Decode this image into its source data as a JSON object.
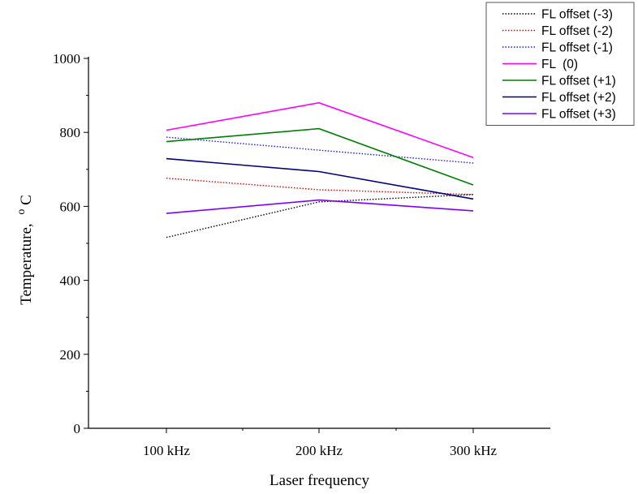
{
  "chart_data": {
    "type": "line",
    "title": "",
    "xlabel": "Laser frequency",
    "ylabel": "Temperature,",
    "ylabel_unit": {
      "superscript": "o",
      "base": "C"
    },
    "categories": [
      "100 kHz",
      "200 kHz",
      "300 kHz"
    ],
    "ylim": [
      0,
      1000
    ],
    "yticks": [
      0,
      200,
      400,
      600,
      800,
      1000
    ],
    "ytick_labels": [
      "0",
      "200",
      "400",
      "600",
      "800",
      "1000"
    ],
    "grid": false,
    "legend_position": "top-right",
    "series": [
      {
        "name": "FL offset (-3)",
        "values": [
          516,
          612,
          632
        ],
        "color": "#000000",
        "style": "dotted"
      },
      {
        "name": "FL offset (-2)",
        "values": [
          676,
          645,
          632
        ],
        "color": "#e00000",
        "style": "dotted"
      },
      {
        "name": "FL offset (-1)",
        "values": [
          787,
          752,
          717
        ],
        "color": "#1a1aff",
        "style": "dotted"
      },
      {
        "name": "FL  (0)",
        "values": [
          806,
          880,
          732
        ],
        "color": "#ff00ff",
        "style": "solid"
      },
      {
        "name": "FL offset (+1)",
        "values": [
          775,
          810,
          658
        ],
        "color": "#008000",
        "style": "solid"
      },
      {
        "name": "FL offset (+2)",
        "values": [
          729,
          694,
          620
        ],
        "color": "#000080",
        "style": "solid"
      },
      {
        "name": "FL offset (+3)",
        "values": [
          581,
          617,
          588
        ],
        "color": "#8000ff",
        "style": "solid"
      }
    ]
  }
}
